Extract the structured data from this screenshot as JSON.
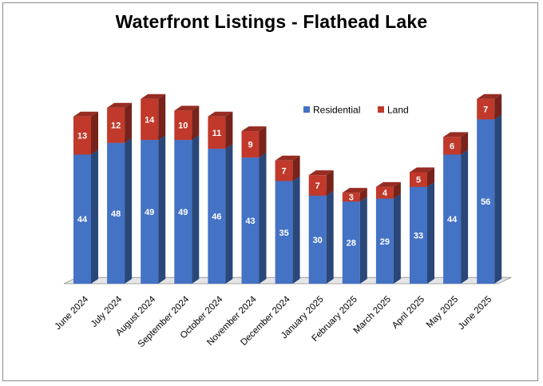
{
  "chart_data": {
    "type": "bar",
    "stacked": true,
    "style": "3d",
    "title": "Waterfront Listings - Flathead Lake",
    "categories": [
      "June 2024",
      "July 2024",
      "August 2024",
      "September 2024",
      "October 2024",
      "November 2024",
      "December 2024",
      "January 2025",
      "February 2025",
      "March 2025",
      "April 2025",
      "May 2025",
      "June 2025"
    ],
    "series": [
      {
        "name": "Residential",
        "color": "#4472c4",
        "values": [
          44,
          48,
          49,
          49,
          46,
          43,
          35,
          30,
          28,
          29,
          33,
          44,
          56
        ]
      },
      {
        "name": "Land",
        "color": "#c0392b",
        "values": [
          13,
          12,
          14,
          10,
          11,
          9,
          7,
          7,
          3,
          4,
          5,
          6,
          7
        ]
      }
    ],
    "ylim": [
      0,
      70
    ],
    "grid": false,
    "legend": "top-right",
    "data_labels": true
  }
}
